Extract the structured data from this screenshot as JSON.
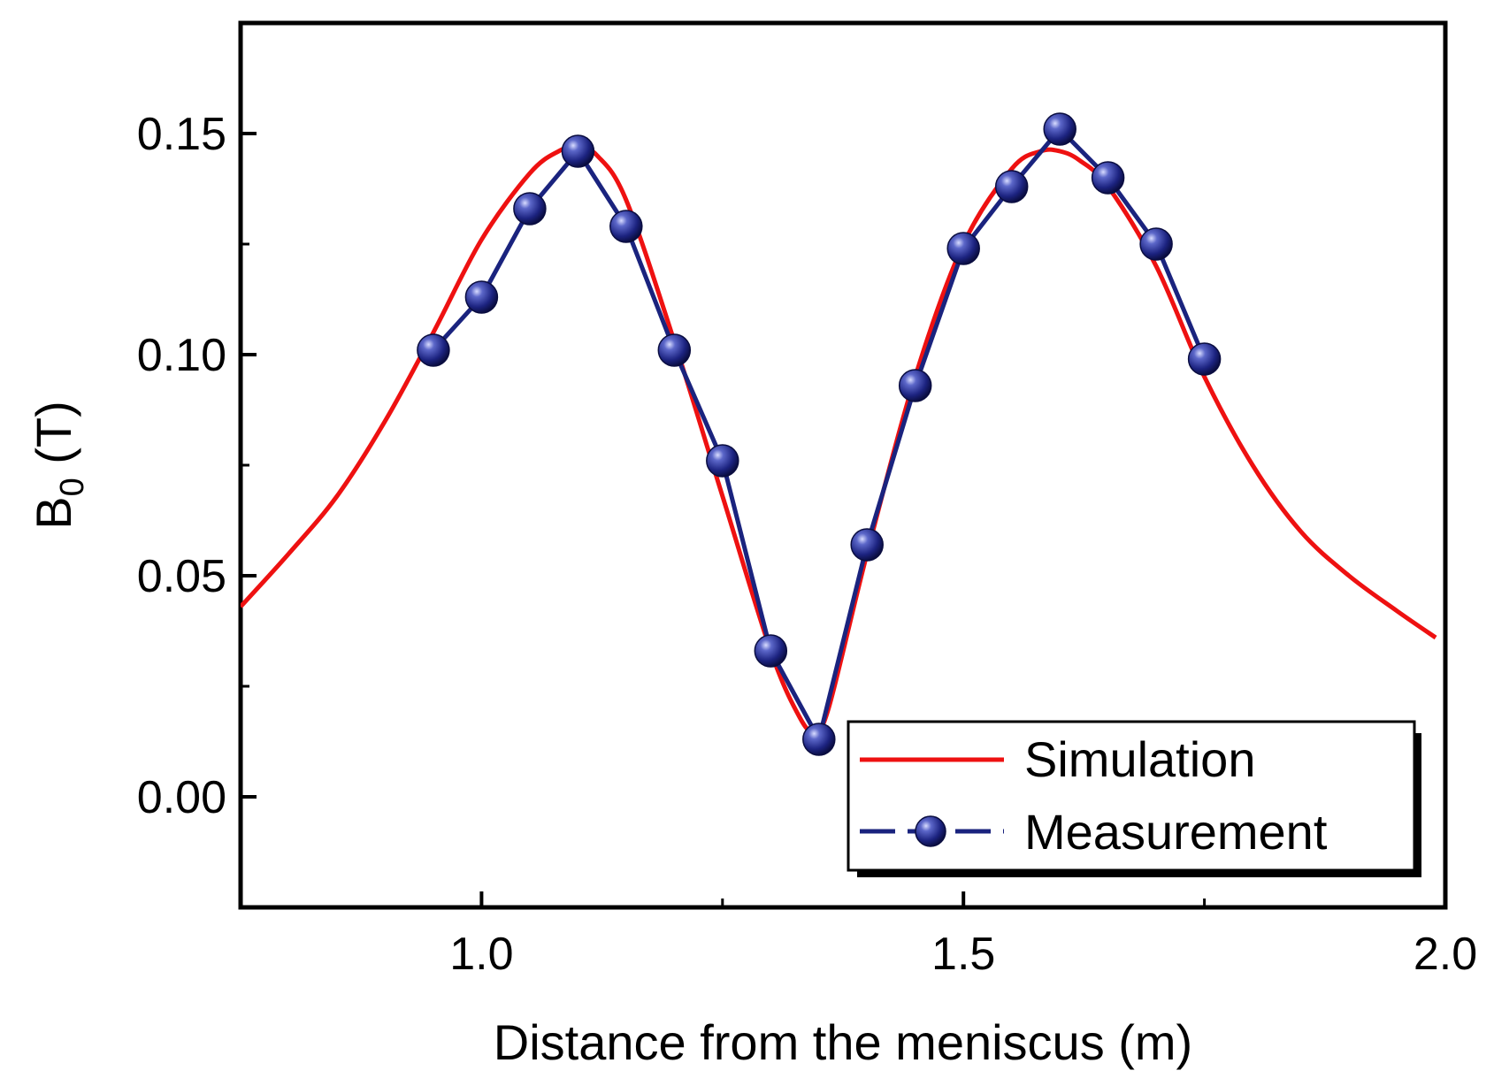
{
  "chart_data": {
    "type": "line",
    "title": "",
    "xlabel": "Distance from the meniscus (m)",
    "ylabel_main": "B",
    "ylabel_sub": "0",
    "ylabel_unit": " (T)",
    "xlim": [
      0.75,
      2.0
    ],
    "ylim": [
      -0.025,
      0.175
    ],
    "x_ticks": [
      {
        "value": 1.0,
        "label": "1.0"
      },
      {
        "value": 1.5,
        "label": "1.5"
      },
      {
        "value": 2.0,
        "label": "2.0"
      }
    ],
    "x_minor_ticks": [
      1.25,
      1.75
    ],
    "y_ticks": [
      {
        "value": 0.0,
        "label": "0.00"
      },
      {
        "value": 0.05,
        "label": "0.05"
      },
      {
        "value": 0.1,
        "label": "0.10"
      },
      {
        "value": 0.15,
        "label": "0.15"
      }
    ],
    "y_minor_ticks": [
      -0.025,
      0.025,
      0.075,
      0.125
    ],
    "legend_position": "bottom-right",
    "series": [
      {
        "name": "Simulation",
        "color": "#ee1111",
        "marker": "none",
        "x": [
          0.75,
          0.8,
          0.85,
          0.9,
          0.95,
          1.0,
          1.05,
          1.08,
          1.1,
          1.12,
          1.15,
          1.2,
          1.25,
          1.3,
          1.33,
          1.345,
          1.36,
          1.4,
          1.45,
          1.5,
          1.55,
          1.58,
          1.6,
          1.62,
          1.65,
          1.7,
          1.75,
          1.8,
          1.85,
          1.9,
          1.95,
          1.99
        ],
        "y": [
          0.043,
          0.055,
          0.068,
          0.085,
          0.105,
          0.126,
          0.141,
          0.146,
          0.147,
          0.145,
          0.135,
          0.103,
          0.068,
          0.033,
          0.018,
          0.015,
          0.02,
          0.055,
          0.095,
          0.125,
          0.142,
          0.146,
          0.146,
          0.144,
          0.138,
          0.12,
          0.095,
          0.075,
          0.06,
          0.05,
          0.042,
          0.036
        ]
      },
      {
        "name": "Measurement",
        "color": "#1a237e",
        "marker": "sphere",
        "x": [
          0.95,
          1.0,
          1.05,
          1.1,
          1.15,
          1.2,
          1.25,
          1.3,
          1.35,
          1.4,
          1.45,
          1.5,
          1.55,
          1.6,
          1.65,
          1.7,
          1.75
        ],
        "y": [
          0.101,
          0.113,
          0.133,
          0.146,
          0.129,
          0.101,
          0.076,
          0.033,
          0.013,
          0.057,
          0.093,
          0.124,
          0.138,
          0.151,
          0.14,
          0.125,
          0.099
        ]
      }
    ]
  }
}
